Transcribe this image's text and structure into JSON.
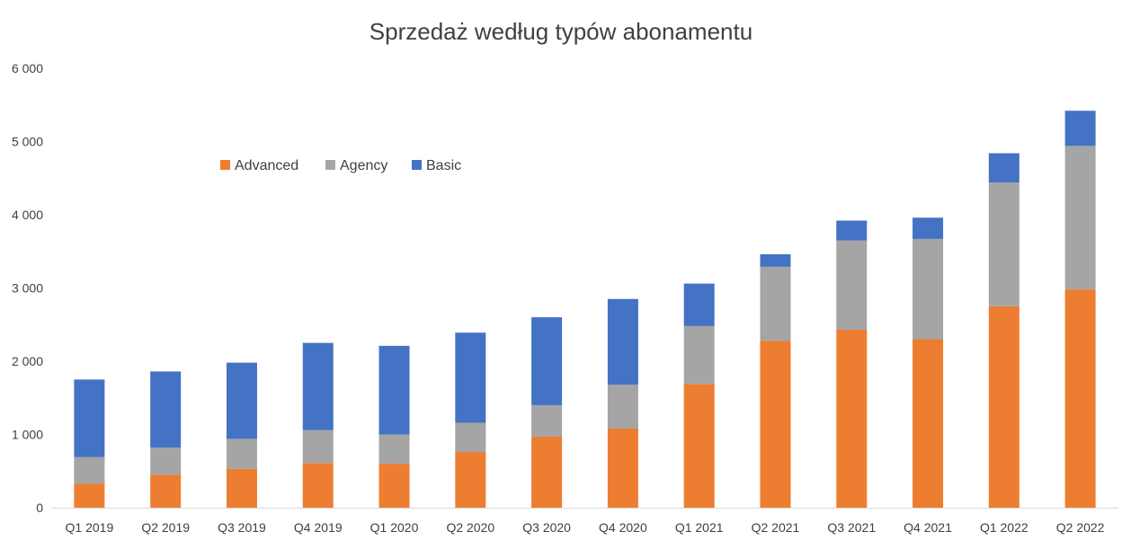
{
  "chart_data": {
    "type": "bar",
    "stacked": true,
    "title": "Sprzedaż według typów abonamentu",
    "xlabel": "",
    "ylabel": "",
    "ylim": [
      0,
      6000
    ],
    "yticks": [
      0,
      1000,
      2000,
      3000,
      4000,
      5000,
      6000
    ],
    "ytick_labels": [
      "0",
      "1 000",
      "2 000",
      "3 000",
      "4 000",
      "5 000",
      "6 000"
    ],
    "grid": false,
    "legend_position": "top-left",
    "categories": [
      "Q1 2019",
      "Q2 2019",
      "Q3 2019",
      "Q4 2019",
      "Q1 2020",
      "Q2 2020",
      "Q3 2020",
      "Q4 2020",
      "Q1 2021",
      "Q2 2021",
      "Q3 2021",
      "Q4 2021",
      "Q1 2022",
      "Q2 2022"
    ],
    "series": [
      {
        "name": "Advanced",
        "color": "#ED7D31",
        "values": [
          330,
          450,
          530,
          610,
          600,
          760,
          970,
          1080,
          1690,
          2280,
          2430,
          2300,
          2750,
          2980
        ]
      },
      {
        "name": "Agency",
        "color": "#A5A5A5",
        "values": [
          360,
          370,
          410,
          450,
          400,
          400,
          430,
          600,
          790,
          1010,
          1220,
          1370,
          1690,
          1960
        ]
      },
      {
        "name": "Basic",
        "color": "#4472C4",
        "values": [
          1060,
          1040,
          1040,
          1190,
          1210,
          1230,
          1200,
          1170,
          580,
          170,
          270,
          290,
          400,
          480
        ]
      }
    ]
  }
}
